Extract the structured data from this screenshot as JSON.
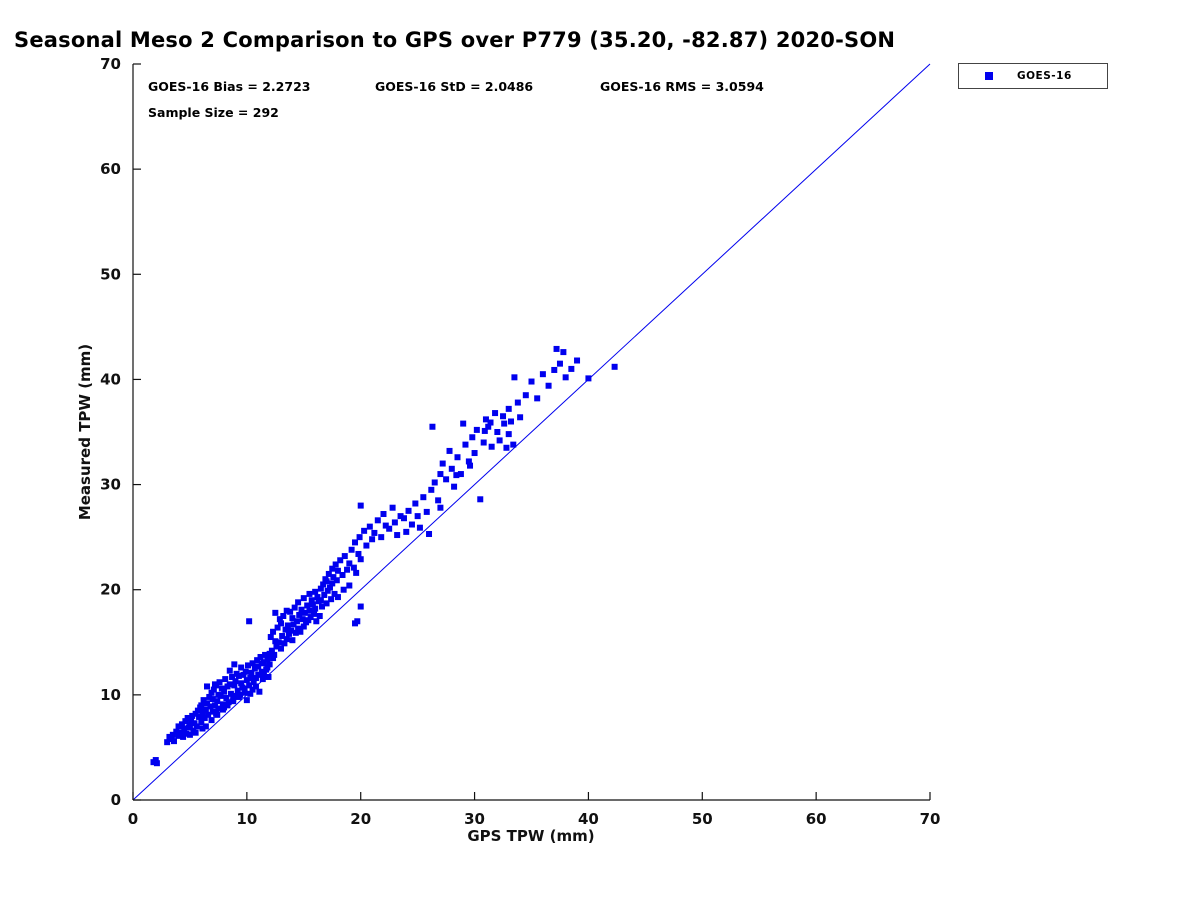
{
  "chart_data": {
    "type": "scatter",
    "title": "Seasonal Meso 2 Comparison to GPS over P779 (35.20, -82.87) 2020-SON",
    "xlabel": "GPS TPW (mm)",
    "ylabel": "Measured TPW (mm)",
    "xlim": [
      0,
      70
    ],
    "ylim": [
      0,
      70
    ],
    "xticks": [
      0,
      10,
      20,
      30,
      40,
      50,
      60,
      70
    ],
    "yticks": [
      0,
      10,
      20,
      30,
      40,
      50,
      60,
      70
    ],
    "grid": false,
    "legend_position": "top-right-outside",
    "annotations": {
      "bias": "GOES-16 Bias = 2.2723",
      "std": "GOES-16 StD = 2.0486",
      "rms": "GOES-16 RMS = 3.0594",
      "sample": "Sample Size = 292"
    },
    "stats": {
      "bias": 2.2723,
      "std": 2.0486,
      "rms": 3.0594,
      "sample_size": 292
    },
    "identity_line": {
      "from": [
        0,
        0
      ],
      "to": [
        70,
        70
      ],
      "color": "#0000ee"
    },
    "series": [
      {
        "name": "GOES-16",
        "marker": "square",
        "color": "#0000ee",
        "points": [
          [
            1.8,
            3.6
          ],
          [
            2.0,
            3.8
          ],
          [
            2.1,
            3.5
          ],
          [
            3.0,
            5.5
          ],
          [
            3.2,
            6.0
          ],
          [
            3.4,
            5.8
          ],
          [
            3.5,
            6.2
          ],
          [
            3.6,
            5.6
          ],
          [
            3.8,
            6.5
          ],
          [
            4.0,
            6.1
          ],
          [
            4.0,
            7.0
          ],
          [
            4.2,
            6.4
          ],
          [
            4.3,
            7.2
          ],
          [
            4.4,
            6.0
          ],
          [
            4.5,
            6.8
          ],
          [
            4.6,
            7.5
          ],
          [
            4.7,
            6.3
          ],
          [
            4.8,
            7.8
          ],
          [
            4.9,
            6.9
          ],
          [
            5.0,
            7.1
          ],
          [
            5.0,
            6.2
          ],
          [
            5.1,
            7.6
          ],
          [
            5.2,
            8.0
          ],
          [
            5.3,
            6.6
          ],
          [
            5.4,
            7.3
          ],
          [
            5.5,
            8.2
          ],
          [
            5.6,
            7.0
          ],
          [
            5.7,
            8.5
          ],
          [
            5.8,
            7.9
          ],
          [
            5.9,
            8.8
          ],
          [
            6.0,
            7.4
          ],
          [
            6.0,
            9.0
          ],
          [
            6.1,
            8.3
          ],
          [
            6.2,
            9.5
          ],
          [
            6.3,
            7.8
          ],
          [
            6.4,
            8.6
          ],
          [
            6.5,
            9.2
          ],
          [
            6.5,
            10.8
          ],
          [
            6.6,
            8.1
          ],
          [
            6.7,
            9.8
          ],
          [
            6.8,
            8.9
          ],
          [
            6.9,
            10.2
          ],
          [
            7.0,
            8.4
          ],
          [
            7.0,
            9.6
          ],
          [
            7.1,
            10.5
          ],
          [
            7.2,
            9.0
          ],
          [
            7.3,
            8.2
          ],
          [
            7.3,
            10.9
          ],
          [
            7.4,
            9.4
          ],
          [
            7.5,
            10.0
          ],
          [
            7.5,
            8.7
          ],
          [
            7.6,
            11.2
          ],
          [
            7.7,
            9.9
          ],
          [
            7.8,
            10.6
          ],
          [
            7.9,
            9.1
          ],
          [
            8.0,
            10.3
          ],
          [
            8.0,
            8.8
          ],
          [
            8.1,
            11.5
          ],
          [
            8.2,
            9.7
          ],
          [
            8.3,
            10.8
          ],
          [
            8.4,
            9.3
          ],
          [
            8.5,
            11.0
          ],
          [
            8.5,
            12.3
          ],
          [
            8.6,
            10.1
          ],
          [
            8.7,
            11.7
          ],
          [
            8.8,
            9.6
          ],
          [
            8.9,
            10.9
          ],
          [
            9.0,
            11.3
          ],
          [
            9.0,
            9.9
          ],
          [
            9.1,
            12.0
          ],
          [
            9.2,
            10.4
          ],
          [
            9.3,
            11.8
          ],
          [
            9.4,
            10.0
          ],
          [
            9.5,
            11.1
          ],
          [
            9.5,
            12.6
          ],
          [
            9.6,
            10.7
          ],
          [
            9.7,
            11.9
          ],
          [
            9.8,
            10.2
          ],
          [
            9.9,
            12.2
          ],
          [
            10.0,
            11.4
          ],
          [
            10.0,
            9.5
          ],
          [
            10.1,
            12.8
          ],
          [
            10.2,
            10.9
          ],
          [
            10.3,
            11.6
          ],
          [
            10.4,
            12.1
          ],
          [
            10.5,
            10.5
          ],
          [
            10.5,
            13.0
          ],
          [
            10.6,
            11.2
          ],
          [
            10.7,
            12.5
          ],
          [
            10.8,
            10.8
          ],
          [
            10.9,
            13.3
          ],
          [
            11.0,
            11.9
          ],
          [
            11.0,
            12.7
          ],
          [
            11.1,
            10.3
          ],
          [
            11.2,
            13.6
          ],
          [
            11.3,
            12.2
          ],
          [
            11.4,
            11.5
          ],
          [
            11.5,
            13.1
          ],
          [
            11.5,
            12.0
          ],
          [
            11.6,
            13.8
          ],
          [
            11.7,
            12.4
          ],
          [
            11.8,
            13.4
          ],
          [
            11.9,
            11.7
          ],
          [
            12.0,
            13.9
          ],
          [
            12.0,
            12.9
          ],
          [
            10.2,
            17.0
          ],
          [
            8.9,
            12.9
          ],
          [
            7.2,
            11.0
          ],
          [
            6.4,
            7.0
          ],
          [
            6.9,
            7.6
          ],
          [
            7.4,
            8.1
          ],
          [
            7.9,
            8.6
          ],
          [
            8.3,
            9.0
          ],
          [
            8.8,
            9.4
          ],
          [
            9.3,
            9.8
          ],
          [
            9.8,
            10.6
          ],
          [
            10.3,
            10.1
          ],
          [
            10.8,
            11.6
          ],
          [
            11.3,
            13.0
          ],
          [
            11.8,
            12.6
          ],
          [
            12.3,
            13.5
          ],
          [
            5.5,
            6.4
          ],
          [
            6.1,
            6.8
          ],
          [
            12.1,
            15.5
          ],
          [
            12.2,
            14.2
          ],
          [
            12.3,
            16.0
          ],
          [
            12.4,
            13.8
          ],
          [
            12.5,
            15.1
          ],
          [
            12.5,
            17.8
          ],
          [
            12.6,
            14.6
          ],
          [
            12.7,
            16.4
          ],
          [
            12.8,
            15.0
          ],
          [
            12.9,
            17.2
          ],
          [
            13.0,
            14.4
          ],
          [
            13.0,
            16.8
          ],
          [
            13.1,
            15.6
          ],
          [
            13.2,
            17.5
          ],
          [
            13.3,
            14.9
          ],
          [
            13.4,
            16.2
          ],
          [
            13.5,
            15.3
          ],
          [
            13.5,
            18.0
          ],
          [
            13.6,
            16.6
          ],
          [
            13.7,
            15.8
          ],
          [
            13.8,
            17.9
          ],
          [
            13.9,
            16.1
          ],
          [
            14.0,
            15.2
          ],
          [
            14.0,
            17.3
          ],
          [
            14.1,
            16.7
          ],
          [
            14.2,
            18.3
          ],
          [
            14.3,
            15.9
          ],
          [
            14.4,
            17.0
          ],
          [
            14.5,
            16.3
          ],
          [
            14.5,
            18.8
          ],
          [
            14.6,
            17.6
          ],
          [
            14.7,
            16.0
          ],
          [
            14.8,
            18.1
          ],
          [
            14.9,
            17.2
          ],
          [
            15.0,
            16.5
          ],
          [
            15.0,
            19.2
          ],
          [
            15.1,
            17.8
          ],
          [
            15.2,
            16.9
          ],
          [
            15.3,
            18.5
          ],
          [
            15.4,
            17.1
          ],
          [
            15.5,
            19.6
          ],
          [
            15.5,
            18.0
          ],
          [
            15.6,
            17.4
          ],
          [
            15.7,
            19.0
          ],
          [
            15.8,
            18.6
          ],
          [
            15.9,
            17.7
          ],
          [
            16.0,
            19.8
          ],
          [
            16.0,
            18.2
          ],
          [
            16.1,
            17.0
          ],
          [
            16.2,
            19.3
          ],
          [
            16.3,
            18.9
          ],
          [
            16.4,
            17.5
          ],
          [
            16.5,
            20.1
          ],
          [
            16.5,
            19.0
          ],
          [
            16.6,
            18.4
          ],
          [
            16.7,
            20.5
          ],
          [
            16.8,
            19.5
          ],
          [
            16.9,
            21.0
          ],
          [
            17.0,
            18.7
          ],
          [
            17.0,
            20.8
          ],
          [
            17.1,
            19.9
          ],
          [
            17.2,
            21.5
          ],
          [
            17.3,
            20.2
          ],
          [
            17.4,
            19.1
          ],
          [
            17.5,
            22.0
          ],
          [
            17.5,
            20.6
          ],
          [
            17.6,
            21.2
          ],
          [
            17.7,
            19.6
          ],
          [
            17.8,
            22.4
          ],
          [
            17.9,
            20.9
          ],
          [
            18.0,
            21.8
          ],
          [
            18.0,
            19.3
          ],
          [
            18.2,
            22.8
          ],
          [
            18.4,
            21.4
          ],
          [
            18.5,
            20.0
          ],
          [
            18.6,
            23.2
          ],
          [
            18.8,
            21.9
          ],
          [
            19.0,
            22.5
          ],
          [
            19.0,
            20.4
          ],
          [
            19.2,
            23.8
          ],
          [
            19.4,
            22.1
          ],
          [
            19.5,
            24.5
          ],
          [
            19.6,
            21.6
          ],
          [
            19.8,
            23.4
          ],
          [
            19.9,
            25.0
          ],
          [
            20.0,
            22.9
          ],
          [
            20.0,
            18.4
          ],
          [
            19.7,
            17.0
          ],
          [
            19.5,
            16.8
          ],
          [
            20.0,
            28.0
          ],
          [
            20.3,
            25.6
          ],
          [
            20.5,
            24.2
          ],
          [
            20.8,
            26.0
          ],
          [
            21.0,
            24.8
          ],
          [
            21.2,
            25.4
          ],
          [
            21.5,
            26.6
          ],
          [
            21.8,
            25.0
          ],
          [
            22.0,
            27.2
          ],
          [
            22.2,
            26.1
          ],
          [
            22.5,
            25.8
          ],
          [
            22.8,
            27.8
          ],
          [
            23.0,
            26.4
          ],
          [
            23.2,
            25.2
          ],
          [
            23.5,
            27.0
          ],
          [
            23.8,
            26.8
          ],
          [
            24.0,
            25.5
          ],
          [
            24.2,
            27.5
          ],
          [
            24.5,
            26.2
          ],
          [
            24.8,
            28.2
          ],
          [
            25.0,
            27.0
          ],
          [
            25.2,
            25.9
          ],
          [
            25.5,
            28.8
          ],
          [
            25.8,
            27.4
          ],
          [
            26.0,
            25.3
          ],
          [
            26.2,
            29.5
          ],
          [
            26.3,
            35.5
          ],
          [
            26.5,
            30.2
          ],
          [
            26.8,
            28.5
          ],
          [
            27.0,
            31.0
          ],
          [
            27.0,
            27.8
          ],
          [
            27.2,
            32.0
          ],
          [
            27.5,
            30.5
          ],
          [
            27.8,
            33.2
          ],
          [
            28.0,
            31.5
          ],
          [
            28.2,
            29.8
          ],
          [
            28.5,
            32.6
          ],
          [
            28.8,
            31.0
          ],
          [
            29.0,
            35.8
          ],
          [
            29.2,
            33.8
          ],
          [
            29.5,
            32.2
          ],
          [
            29.8,
            34.5
          ],
          [
            30.0,
            33.0
          ],
          [
            30.2,
            35.2
          ],
          [
            30.5,
            28.6
          ],
          [
            30.8,
            34.0
          ],
          [
            31.0,
            36.2
          ],
          [
            31.2,
            35.5
          ],
          [
            31.5,
            33.6
          ],
          [
            31.8,
            36.8
          ],
          [
            32.0,
            35.0
          ],
          [
            32.2,
            34.2
          ],
          [
            32.5,
            36.5
          ],
          [
            32.8,
            33.5
          ],
          [
            33.0,
            37.2
          ],
          [
            33.0,
            34.8
          ],
          [
            33.2,
            36.0
          ],
          [
            33.5,
            40.2
          ],
          [
            33.8,
            37.8
          ],
          [
            34.0,
            36.4
          ],
          [
            33.4,
            33.8
          ],
          [
            32.6,
            35.8
          ],
          [
            31.4,
            35.9
          ],
          [
            30.9,
            35.1
          ],
          [
            29.6,
            31.8
          ],
          [
            28.4,
            30.9
          ],
          [
            34.5,
            38.5
          ],
          [
            35.0,
            39.8
          ],
          [
            35.5,
            38.2
          ],
          [
            36.0,
            40.5
          ],
          [
            36.5,
            39.4
          ],
          [
            37.0,
            40.9
          ],
          [
            37.2,
            42.9
          ],
          [
            37.5,
            41.5
          ],
          [
            37.8,
            42.6
          ],
          [
            38.0,
            40.2
          ],
          [
            38.5,
            41.0
          ],
          [
            39.0,
            41.8
          ],
          [
            40.0,
            40.1
          ],
          [
            42.3,
            41.2
          ]
        ]
      }
    ]
  }
}
